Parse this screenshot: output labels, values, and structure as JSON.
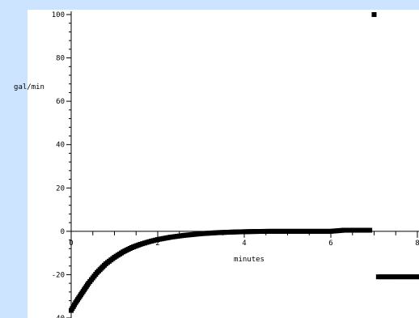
{
  "chart_data": {
    "type": "scatter",
    "title": "",
    "xlabel": "minutes",
    "ylabel": "gal/min",
    "xlim": [
      0,
      8
    ],
    "ylim": [
      -40,
      100
    ],
    "grid": false,
    "xticks": [
      0,
      2,
      4,
      6,
      8
    ],
    "xtick_labels": [
      "0",
      "2",
      "4",
      "6",
      "8"
    ],
    "yticks": [
      -40,
      -20,
      0,
      20,
      40,
      60,
      80,
      100
    ],
    "ytick_labels": [
      "-40",
      "-20",
      "0",
      "20",
      "40",
      "60",
      "80",
      "100"
    ],
    "series": [
      {
        "x": [
          0.0,
          0.1,
          0.2,
          0.3,
          0.4,
          0.5,
          0.6,
          0.8,
          1.0,
          1.2,
          1.4,
          1.6,
          1.8,
          2.0,
          2.3,
          2.6,
          3.0,
          3.4,
          3.8,
          4.2,
          4.6,
          5.0,
          5.5,
          6.0,
          6.3,
          6.5,
          6.7,
          6.9
        ],
        "y": [
          -36.5,
          -33,
          -30,
          -27,
          -24,
          -21.5,
          -19,
          -15,
          -12,
          -9.5,
          -7.5,
          -6,
          -4.8,
          -3.8,
          -2.7,
          -1.9,
          -1.1,
          -0.6,
          -0.3,
          -0.1,
          0,
          0,
          0,
          0,
          0.5,
          0.5,
          0.5,
          0.5
        ]
      },
      {
        "x": [
          7.0
        ],
        "y": [
          100
        ]
      },
      {
        "x": [
          7.1,
          7.3,
          7.5,
          7.7,
          7.9,
          8.1
        ],
        "y": [
          -21,
          -21,
          -21,
          -21,
          -21,
          -21
        ]
      }
    ]
  },
  "colors": {
    "background": "#ffffff",
    "frame": "#cce4ff",
    "marks": "#000000"
  }
}
